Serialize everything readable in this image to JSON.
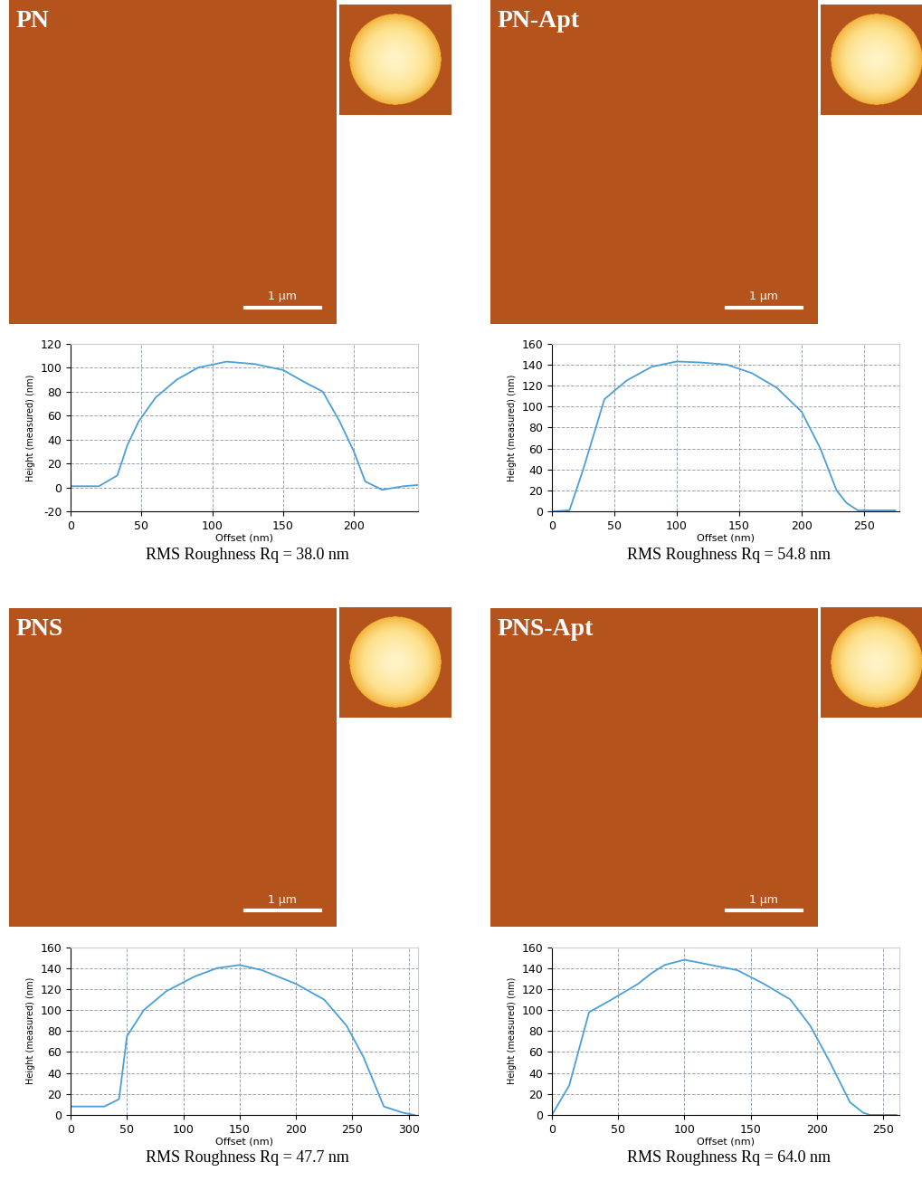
{
  "chart_data": [
    {
      "type": "line",
      "title": "PN",
      "scale_bar": "1 μm",
      "x_label": "Offset (nm)",
      "y_label": "Height (measured) (nm)",
      "caption": "RMS Roughness Rq = 38.0 nm",
      "color": "#4a9fd8",
      "grid": true,
      "x": [
        0,
        20,
        33,
        40,
        48,
        60,
        75,
        90,
        110,
        130,
        150,
        165,
        178,
        190,
        200,
        208,
        220,
        235,
        245
      ],
      "values": [
        1,
        1,
        10,
        35,
        55,
        75,
        90,
        100,
        105,
        103,
        98,
        88,
        80,
        55,
        30,
        5,
        -2,
        1,
        2
      ],
      "xlim": [
        0,
        245
      ],
      "xticks": [
        0,
        50,
        100,
        150,
        200
      ],
      "ylim": [
        -20,
        120
      ],
      "yticks": [
        -20,
        0,
        20,
        40,
        60,
        80,
        100,
        120
      ]
    },
    {
      "type": "line",
      "title": "PN-Apt",
      "scale_bar": "1 μm",
      "x_label": "Offset (nm)",
      "y_label": "Height (measured) (nm)",
      "caption": "RMS Roughness Rq = 54.8 nm",
      "color": "#4a9fd8",
      "grid": true,
      "x": [
        0,
        14,
        25,
        42,
        60,
        80,
        100,
        120,
        140,
        160,
        180,
        200,
        215,
        228,
        236,
        245,
        275
      ],
      "values": [
        0,
        1,
        40,
        107,
        125,
        138,
        143,
        142,
        140,
        132,
        118,
        95,
        60,
        20,
        8,
        1,
        1
      ],
      "xlim": [
        0,
        278
      ],
      "xticks": [
        0,
        50,
        100,
        150,
        200,
        250
      ],
      "ylim": [
        0,
        160
      ],
      "yticks": [
        0,
        20,
        40,
        60,
        80,
        100,
        120,
        140,
        160
      ]
    },
    {
      "type": "line",
      "title": "PNS",
      "scale_bar": "1 μm",
      "x_label": "Offset (nm)",
      "y_label": "Height (measured) (nm)",
      "caption": "RMS Roughness Rq = 47.7 nm",
      "color": "#4a9fd8",
      "grid": true,
      "x": [
        0,
        30,
        43,
        50,
        65,
        85,
        110,
        130,
        150,
        170,
        200,
        225,
        245,
        260,
        278,
        295,
        305
      ],
      "values": [
        8,
        8,
        15,
        75,
        100,
        118,
        132,
        140,
        143,
        138,
        125,
        110,
        85,
        55,
        8,
        2,
        0
      ],
      "xlim": [
        0,
        308
      ],
      "xticks": [
        0,
        50,
        100,
        150,
        200,
        250,
        300
      ],
      "ylim": [
        0,
        160
      ],
      "yticks": [
        0,
        20,
        40,
        60,
        80,
        100,
        120,
        140,
        160
      ]
    },
    {
      "type": "line",
      "title": "PNS-Apt",
      "scale_bar": "1 μm",
      "x_label": "Offset (nm)",
      "y_label": "Height (measured) (nm)",
      "caption": "RMS Roughness Rq = 64.0 nm",
      "color": "#4a9fd8",
      "grid": true,
      "x": [
        0,
        13,
        28,
        45,
        65,
        75,
        85,
        100,
        120,
        140,
        160,
        180,
        195,
        210,
        225,
        235,
        240,
        260
      ],
      "values": [
        0,
        28,
        98,
        110,
        125,
        135,
        143,
        148,
        143,
        138,
        125,
        110,
        85,
        50,
        12,
        2,
        0,
        0
      ],
      "xlim": [
        0,
        262
      ],
      "xticks": [
        0,
        50,
        100,
        150,
        200,
        250
      ],
      "ylim": [
        0,
        160
      ],
      "yticks": [
        0,
        20,
        40,
        60,
        80,
        100,
        120,
        140,
        160
      ]
    }
  ]
}
